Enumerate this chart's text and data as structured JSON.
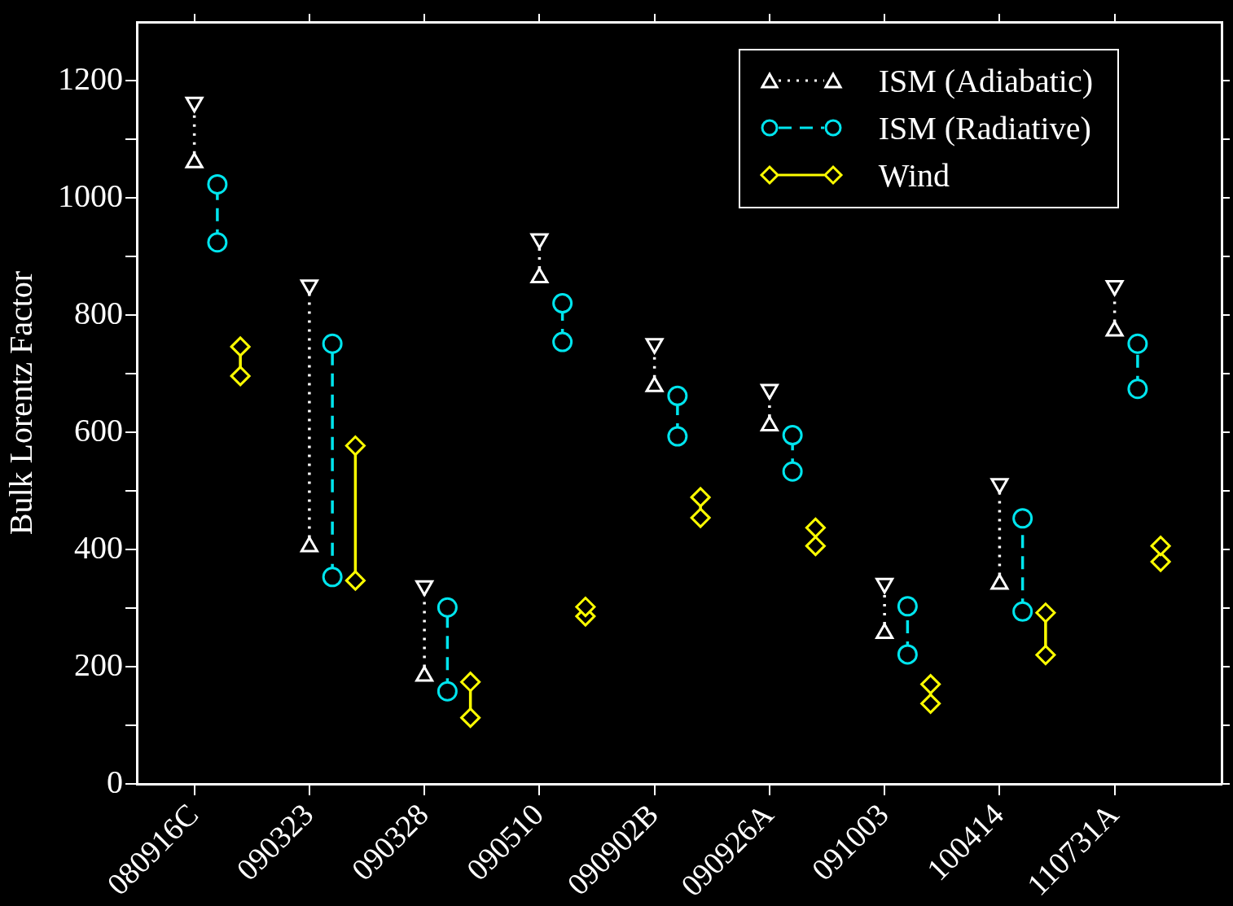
{
  "chart_data": {
    "type": "line",
    "ylabel": "Bulk Lorentz Factor",
    "categories": [
      "080916C",
      "090323",
      "090328",
      "090510",
      "090902B",
      "090926A",
      "091003",
      "100414",
      "110731A"
    ],
    "ylim": [
      0,
      1300
    ],
    "yticks": [
      0,
      {
        "value": 100,
        "label": null
      },
      200,
      {
        "value": 300,
        "label": null
      },
      400,
      {
        "value": 500,
        "label": null
      },
      600,
      {
        "value": 700,
        "label": null
      },
      800,
      {
        "value": 900,
        "label": null
      },
      1000,
      {
        "value": 1100,
        "label": null
      },
      1200
    ],
    "grid": false,
    "legend": "top right",
    "series": [
      {
        "name": "ISM (Adiabatic)",
        "color": "#ffffff",
        "marker": "triangle",
        "line_style": "dotted",
        "x": [
          "080916C",
          "080916C",
          "080916C",
          "090323",
          "090323",
          "090323",
          "090328",
          "090328",
          "090328",
          "090510",
          "090510",
          "090510",
          "090902B",
          "090902B",
          "090902B",
          "090926A",
          "090926A",
          "090926A",
          "091003",
          "091003",
          "091003",
          "100414",
          "100414",
          "100414",
          "110731A",
          "110731A",
          "110731A"
        ],
        "values": [
          1060,
          1163,
          null,
          405,
          851,
          null,
          184,
          338,
          null,
          864,
          930,
          null,
          678,
          751,
          null,
          611,
          673,
          null,
          257,
          342,
          null,
          341,
          512,
          null,
          773,
          850,
          null
        ]
      },
      {
        "name": "ISM (Radiative)",
        "color": "#00e5ee",
        "marker": "circle",
        "line_style": "dashed",
        "x": [
          "080916C",
          "080916C",
          "080916C",
          "090323",
          "090323",
          "090323",
          "090328",
          "090328",
          "090328",
          "090510",
          "090510",
          "090510",
          "090902B",
          "090902B",
          "090902B",
          "090926A",
          "090926A",
          "090926A",
          "091003",
          "091003",
          "091003",
          "100414",
          "100414",
          "100414",
          "110731A",
          "110731A",
          "110731A"
        ],
        "values": [
          924,
          1023,
          null,
          353,
          751,
          null,
          158,
          301,
          null,
          754,
          820,
          null,
          593,
          662,
          null,
          533,
          595,
          null,
          221,
          303,
          null,
          294,
          453,
          null,
          674,
          751,
          null
        ]
      },
      {
        "name": "Wind",
        "color": "#ffff00",
        "marker": "diamond",
        "line_style": "solid",
        "x": [
          "080916C",
          "080916C",
          "080916C",
          "090323",
          "090323",
          "090323",
          "090328",
          "090328",
          "090328",
          "090510",
          "090510",
          "090510",
          "090902B",
          "090902B",
          "090902B",
          "090926A",
          "090926A",
          "090926A",
          "091003",
          "091003",
          "091003",
          "100414",
          "100414",
          "100414",
          "110731A",
          "110731A",
          "110731A"
        ],
        "values": [
          696,
          746,
          null,
          347,
          577,
          null,
          113,
          174,
          null,
          286,
          302,
          null,
          454,
          489,
          null,
          406,
          437,
          null,
          137,
          170,
          null,
          220,
          292,
          null,
          379,
          406,
          null
        ]
      }
    ]
  }
}
